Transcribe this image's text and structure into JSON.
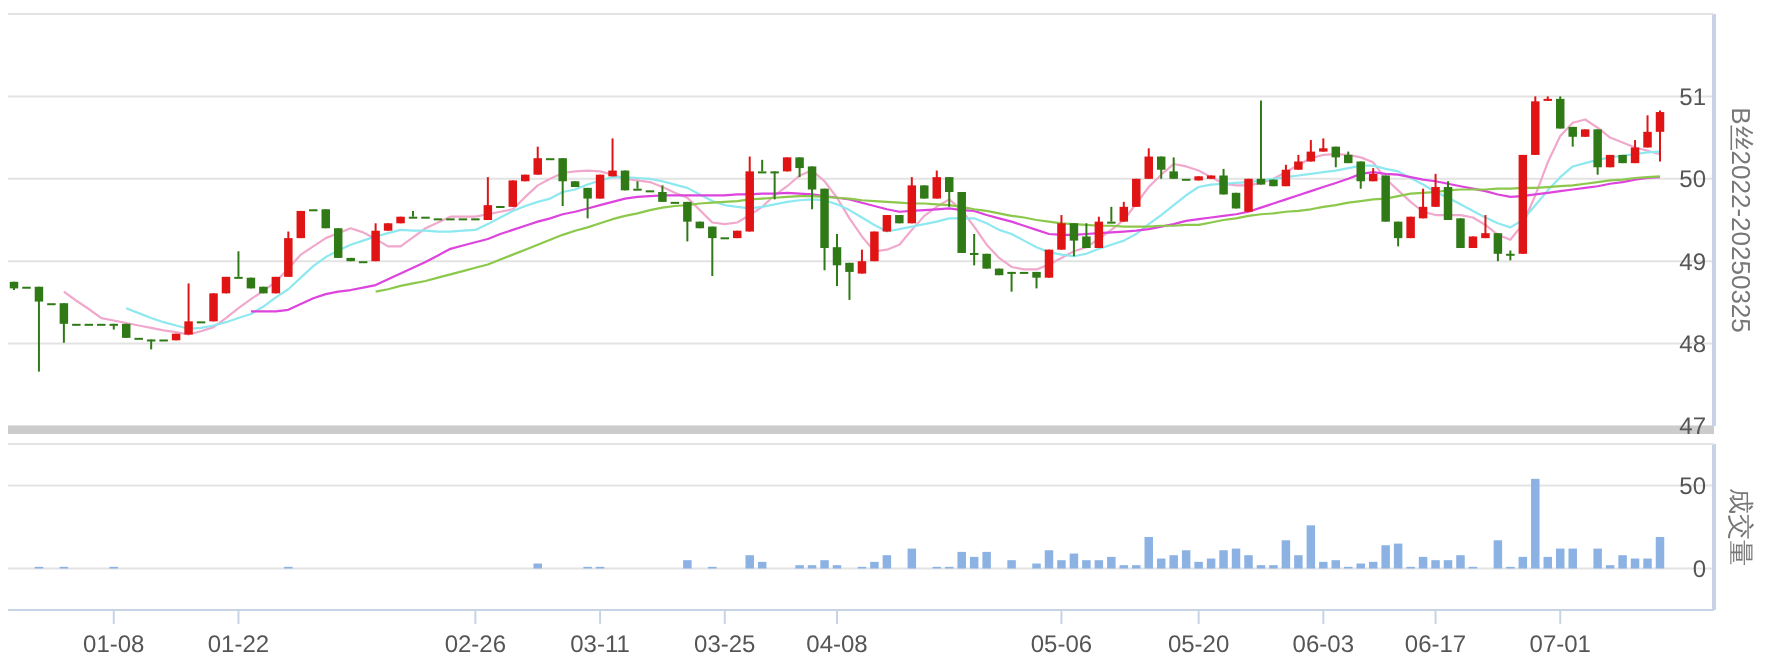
{
  "chart_data": [
    {
      "type": "candlestick",
      "ylabel": "B丝2022-20250325",
      "grid": "y",
      "tick_labels": "y",
      "ylim": [
        47,
        52
      ],
      "yticks": [
        47,
        48,
        49,
        50,
        51
      ],
      "categories": [
        null,
        null,
        null,
        null,
        null,
        null,
        null,
        null,
        null,
        null,
        null,
        null,
        null,
        null,
        null,
        null,
        null,
        null,
        null,
        null,
        null,
        null,
        null,
        null,
        null,
        null,
        null,
        null,
        null,
        null,
        null,
        null,
        null,
        null,
        null,
        null,
        null,
        null,
        null,
        null,
        null,
        null,
        null,
        null,
        null,
        null,
        null,
        null,
        null,
        null,
        null,
        null,
        null,
        null,
        null,
        null,
        null,
        null,
        null,
        null,
        null,
        null,
        null,
        null,
        null,
        null,
        null,
        null,
        null,
        null,
        null,
        null,
        null,
        null,
        null,
        null,
        null,
        null,
        null,
        null,
        null,
        null,
        null,
        null,
        null,
        null,
        null,
        null,
        null,
        null,
        null,
        null,
        null,
        null,
        null,
        null,
        null,
        null,
        null,
        null,
        null,
        null,
        null,
        null,
        null,
        null,
        null,
        null,
        null,
        null,
        null,
        null,
        null,
        null,
        null,
        null,
        null,
        null,
        null,
        null,
        null,
        null,
        null,
        null,
        null,
        null,
        null,
        null,
        null,
        null,
        null,
        null,
        null
      ],
      "ohlc": [
        [
          48.75,
          48.75,
          48.65,
          48.67
        ],
        [
          48.69,
          48.69,
          48.69,
          48.69
        ],
        [
          48.69,
          48.69,
          47.66,
          48.51
        ],
        [
          48.49,
          48.49,
          48.49,
          48.49
        ],
        [
          48.49,
          48.49,
          48.01,
          48.24
        ],
        [
          48.24,
          48.24,
          48.24,
          48.24
        ],
        [
          48.24,
          48.24,
          48.24,
          48.24
        ],
        [
          48.24,
          48.24,
          48.24,
          48.24
        ],
        [
          48.24,
          48.24,
          48.17,
          48.24
        ],
        [
          48.24,
          48.24,
          48.07,
          48.07
        ],
        [
          48.07,
          48.07,
          48.07,
          48.07
        ],
        [
          48.05,
          48.05,
          47.93,
          48.05
        ],
        [
          48.05,
          48.05,
          48.05,
          48.05
        ],
        [
          48.04,
          48.12,
          48.04,
          48.12
        ],
        [
          48.11,
          48.73,
          48.11,
          48.27
        ],
        [
          48.27,
          48.27,
          48.27,
          48.27
        ],
        [
          48.27,
          48.61,
          48.27,
          48.61
        ],
        [
          48.61,
          48.81,
          48.61,
          48.81
        ],
        [
          48.81,
          49.12,
          48.81,
          48.81
        ],
        [
          48.8,
          48.8,
          48.67,
          48.67
        ],
        [
          48.69,
          48.69,
          48.61,
          48.61
        ],
        [
          48.61,
          48.81,
          48.61,
          48.81
        ],
        [
          48.81,
          49.36,
          48.81,
          49.28
        ],
        [
          49.28,
          49.61,
          49.28,
          49.61
        ],
        [
          49.63,
          49.63,
          49.63,
          49.63
        ],
        [
          49.63,
          49.63,
          49.4,
          49.4
        ],
        [
          49.4,
          49.4,
          49.04,
          49.04
        ],
        [
          49.04,
          49.04,
          49.0,
          49.0
        ],
        [
          49.0,
          49.0,
          49.0,
          49.0
        ],
        [
          49.0,
          49.46,
          49.0,
          49.37
        ],
        [
          49.37,
          49.46,
          49.37,
          49.46
        ],
        [
          49.46,
          49.54,
          49.46,
          49.54
        ],
        [
          49.54,
          49.61,
          49.54,
          49.54
        ],
        [
          49.54,
          49.54,
          49.54,
          49.54
        ],
        [
          49.52,
          49.52,
          49.52,
          49.52
        ],
        [
          49.52,
          49.52,
          49.52,
          49.52
        ],
        [
          49.52,
          49.52,
          49.52,
          49.52
        ],
        [
          49.52,
          49.52,
          49.52,
          49.52
        ],
        [
          49.5,
          50.02,
          49.5,
          49.68
        ],
        [
          49.67,
          49.67,
          49.67,
          49.67
        ],
        [
          49.66,
          49.98,
          49.66,
          49.98
        ],
        [
          49.97,
          50.05,
          49.97,
          50.05
        ],
        [
          50.05,
          50.39,
          50.05,
          50.25
        ],
        [
          50.25,
          50.25,
          50.25,
          50.25
        ],
        [
          50.25,
          50.25,
          49.67,
          49.97
        ],
        [
          49.97,
          49.97,
          49.9,
          49.9
        ],
        [
          49.89,
          49.89,
          49.52,
          49.76
        ],
        [
          49.76,
          50.05,
          49.76,
          50.05
        ],
        [
          50.03,
          50.49,
          50.03,
          50.1
        ],
        [
          50.1,
          50.1,
          49.86,
          49.86
        ],
        [
          49.88,
          49.97,
          49.88,
          49.88
        ],
        [
          49.86,
          49.86,
          49.86,
          49.86
        ],
        [
          49.84,
          49.92,
          49.72,
          49.72
        ],
        [
          49.72,
          49.72,
          49.72,
          49.72
        ],
        [
          49.72,
          49.72,
          49.24,
          49.48
        ],
        [
          49.48,
          49.48,
          49.4,
          49.4
        ],
        [
          49.42,
          49.42,
          48.82,
          49.28
        ],
        [
          49.29,
          49.29,
          49.29,
          49.29
        ],
        [
          49.28,
          49.37,
          49.28,
          49.37
        ],
        [
          49.36,
          50.27,
          49.36,
          50.09
        ],
        [
          50.09,
          50.23,
          50.09,
          50.09
        ],
        [
          50.09,
          50.09,
          49.75,
          50.09
        ],
        [
          50.09,
          50.26,
          50.09,
          50.26
        ],
        [
          50.26,
          50.26,
          50.02,
          50.13
        ],
        [
          50.15,
          50.15,
          49.63,
          49.87
        ],
        [
          49.88,
          49.88,
          48.89,
          49.16
        ],
        [
          49.17,
          49.33,
          48.7,
          48.95
        ],
        [
          48.98,
          48.98,
          48.53,
          48.87
        ],
        [
          48.85,
          49.14,
          48.85,
          49.0
        ],
        [
          49.0,
          49.36,
          49.0,
          49.36
        ],
        [
          49.36,
          49.56,
          49.36,
          49.56
        ],
        [
          49.56,
          49.56,
          49.46,
          49.46
        ],
        [
          49.46,
          50.02,
          49.46,
          49.92
        ],
        [
          49.92,
          49.92,
          49.76,
          49.76
        ],
        [
          49.76,
          50.1,
          49.76,
          50.02
        ],
        [
          50.02,
          50.02,
          49.66,
          49.84
        ],
        [
          49.84,
          49.84,
          49.1,
          49.1
        ],
        [
          49.1,
          49.33,
          48.95,
          49.1
        ],
        [
          49.09,
          49.09,
          48.91,
          48.91
        ],
        [
          48.91,
          48.91,
          48.83,
          48.83
        ],
        [
          48.87,
          48.87,
          48.63,
          48.87
        ],
        [
          48.87,
          48.87,
          48.87,
          48.87
        ],
        [
          48.87,
          48.87,
          48.67,
          48.8
        ],
        [
          48.8,
          49.14,
          48.8,
          49.14
        ],
        [
          49.14,
          49.56,
          49.14,
          49.46
        ],
        [
          49.46,
          49.46,
          49.06,
          49.25
        ],
        [
          49.3,
          49.46,
          49.16,
          49.16
        ],
        [
          49.16,
          49.54,
          49.16,
          49.48
        ],
        [
          49.48,
          49.66,
          49.48,
          49.48
        ],
        [
          49.48,
          49.72,
          49.48,
          49.66
        ],
        [
          49.66,
          50.0,
          49.66,
          50.0
        ],
        [
          50.0,
          50.37,
          50.0,
          50.27
        ],
        [
          50.27,
          50.27,
          50.0,
          50.11
        ],
        [
          50.09,
          50.26,
          50.0,
          50.0
        ],
        [
          50.0,
          50.0,
          50.0,
          50.0
        ],
        [
          49.98,
          50.03,
          49.98,
          50.03
        ],
        [
          50.0,
          50.04,
          50.0,
          50.04
        ],
        [
          50.04,
          50.12,
          49.81,
          49.81
        ],
        [
          49.83,
          49.83,
          49.64,
          49.64
        ],
        [
          49.6,
          50.0,
          49.6,
          50.0
        ],
        [
          50.0,
          50.95,
          49.93,
          49.93
        ],
        [
          49.99,
          49.99,
          49.91,
          49.91
        ],
        [
          49.91,
          50.17,
          49.91,
          50.11
        ],
        [
          50.11,
          50.29,
          50.11,
          50.21
        ],
        [
          50.21,
          50.47,
          50.21,
          50.33
        ],
        [
          50.33,
          50.49,
          50.33,
          50.37
        ],
        [
          50.39,
          50.39,
          50.14,
          50.26
        ],
        [
          50.29,
          50.33,
          50.19,
          50.19
        ],
        [
          50.21,
          50.21,
          49.88,
          49.97
        ],
        [
          49.97,
          50.13,
          49.97,
          50.06
        ],
        [
          50.04,
          50.04,
          49.48,
          49.48
        ],
        [
          49.48,
          49.48,
          49.18,
          49.28
        ],
        [
          49.28,
          49.54,
          49.28,
          49.54
        ],
        [
          49.52,
          49.88,
          49.52,
          49.66
        ],
        [
          49.66,
          50.06,
          49.66,
          49.9
        ],
        [
          49.9,
          49.97,
          49.5,
          49.5
        ],
        [
          49.52,
          49.52,
          49.16,
          49.16
        ],
        [
          49.16,
          49.3,
          49.16,
          49.3
        ],
        [
          49.28,
          49.56,
          49.28,
          49.34
        ],
        [
          49.34,
          49.34,
          49.0,
          49.09
        ],
        [
          49.09,
          49.13,
          49.01,
          49.09
        ],
        [
          49.09,
          50.29,
          49.09,
          50.29
        ],
        [
          50.29,
          51.0,
          50.29,
          50.94
        ],
        [
          50.95,
          51.0,
          50.95,
          50.97
        ],
        [
          50.97,
          51.0,
          50.61,
          50.61
        ],
        [
          50.63,
          50.63,
          50.39,
          50.51
        ],
        [
          50.51,
          50.6,
          50.51,
          50.6
        ],
        [
          50.6,
          50.6,
          50.05,
          50.14
        ],
        [
          50.14,
          50.29,
          50.14,
          50.29
        ],
        [
          50.29,
          50.29,
          50.19,
          50.19
        ],
        [
          50.19,
          50.47,
          50.19,
          50.38
        ],
        [
          50.38,
          50.77,
          50.38,
          50.57
        ],
        [
          50.57,
          50.83,
          50.21,
          50.81
        ]
      ],
      "series": [
        {
          "type": "line",
          "color": "#f0a8cc",
          "values": [
            null,
            null,
            null,
            null,
            48.63,
            48.52,
            48.42,
            48.31,
            48.28,
            48.25,
            48.22,
            48.19,
            48.16,
            48.14,
            48.11,
            48.15,
            48.2,
            48.31,
            48.43,
            48.54,
            48.64,
            48.75,
            48.91,
            49.08,
            49.18,
            49.28,
            49.34,
            49.4,
            49.35,
            49.27,
            49.18,
            49.18,
            49.29,
            49.4,
            49.47,
            49.54,
            49.54,
            49.54,
            49.57,
            49.6,
            49.63,
            49.78,
            49.92,
            50.0,
            50.07,
            50.09,
            50.1,
            50.09,
            50.05,
            50.0,
            49.98,
            49.96,
            49.9,
            49.83,
            49.77,
            49.62,
            49.47,
            49.45,
            49.47,
            49.56,
            49.66,
            49.8,
            49.91,
            50.04,
            50.1,
            49.97,
            49.77,
            49.52,
            49.3,
            49.12,
            49.14,
            49.2,
            49.38,
            49.55,
            49.66,
            49.75,
            49.62,
            49.42,
            49.2,
            49.04,
            48.93,
            48.9,
            48.9,
            48.96,
            49.04,
            49.12,
            49.17,
            49.27,
            49.38,
            49.5,
            49.7,
            49.9,
            50.05,
            50.18,
            50.15,
            50.1,
            50.02,
            49.94,
            49.92,
            49.92,
            49.95,
            50.0,
            50.08,
            50.17,
            50.25,
            50.29,
            50.3,
            50.29,
            50.26,
            50.2,
            50.0,
            49.86,
            49.72,
            49.6,
            49.56,
            49.56,
            49.56,
            49.53,
            49.44,
            49.32,
            49.26,
            49.45,
            49.8,
            50.2,
            50.52,
            50.68,
            50.72,
            50.62,
            50.5,
            50.44,
            50.38,
            50.34,
            50.3
          ]
        },
        {
          "type": "line",
          "color": "#8ee8f0",
          "values": [
            null,
            null,
            null,
            null,
            null,
            null,
            null,
            null,
            null,
            48.43,
            48.37,
            48.31,
            48.26,
            48.22,
            48.18,
            48.19,
            48.22,
            48.26,
            48.31,
            48.36,
            48.45,
            48.56,
            48.66,
            48.8,
            48.94,
            49.05,
            49.13,
            49.2,
            49.25,
            49.3,
            49.34,
            49.38,
            49.37,
            49.37,
            49.36,
            49.36,
            49.37,
            49.38,
            49.45,
            49.53,
            49.61,
            49.67,
            49.72,
            49.76,
            49.84,
            49.87,
            49.93,
            49.98,
            50.02,
            50.02,
            50.01,
            50.0,
            49.97,
            49.93,
            49.89,
            49.81,
            49.73,
            49.68,
            49.66,
            49.64,
            49.66,
            49.69,
            49.72,
            49.74,
            49.75,
            49.74,
            49.69,
            49.62,
            49.53,
            49.44,
            49.36,
            49.39,
            49.42,
            49.45,
            49.48,
            49.52,
            49.52,
            49.52,
            49.46,
            49.38,
            49.33,
            49.25,
            49.17,
            49.11,
            49.08,
            49.06,
            49.09,
            49.15,
            49.2,
            49.25,
            49.33,
            49.45,
            49.56,
            49.68,
            49.8,
            49.9,
            49.93,
            49.94,
            49.95,
            49.96,
            49.98,
            50.0,
            50.02,
            50.04,
            50.06,
            50.08,
            50.1,
            50.13,
            50.16,
            50.16,
            50.12,
            50.09,
            50.01,
            49.93,
            49.84,
            49.77,
            49.69,
            49.61,
            49.53,
            49.46,
            49.41,
            49.5,
            49.68,
            49.86,
            50.02,
            50.15,
            50.19,
            50.23,
            50.26,
            50.28,
            50.3,
            50.32,
            50.33
          ]
        },
        {
          "type": "line",
          "color": "#dd44dd",
          "values": [
            null,
            null,
            null,
            null,
            null,
            null,
            null,
            null,
            null,
            null,
            null,
            null,
            null,
            null,
            null,
            null,
            null,
            null,
            null,
            48.39,
            48.39,
            48.39,
            48.41,
            48.48,
            48.55,
            48.6,
            48.63,
            48.65,
            48.68,
            48.71,
            48.78,
            48.85,
            48.92,
            48.99,
            49.07,
            49.15,
            49.19,
            49.23,
            49.27,
            49.33,
            49.38,
            49.43,
            49.48,
            49.52,
            49.57,
            49.6,
            49.64,
            49.68,
            49.72,
            49.76,
            49.78,
            49.79,
            49.8,
            49.8,
            49.8,
            49.8,
            49.8,
            49.8,
            49.81,
            49.81,
            49.82,
            49.82,
            49.83,
            49.82,
            49.81,
            49.79,
            49.77,
            49.75,
            49.71,
            49.67,
            49.63,
            49.6,
            49.61,
            49.62,
            49.63,
            49.64,
            49.62,
            49.61,
            49.56,
            49.52,
            49.48,
            49.43,
            49.38,
            49.33,
            49.32,
            49.32,
            49.33,
            49.34,
            49.35,
            49.36,
            49.37,
            49.39,
            49.42,
            49.45,
            49.49,
            49.51,
            49.53,
            49.55,
            49.57,
            49.6,
            49.65,
            49.7,
            49.75,
            49.8,
            49.85,
            49.9,
            49.95,
            50.0,
            50.06,
            50.08,
            50.06,
            50.05,
            50.02,
            49.99,
            49.97,
            49.94,
            49.91,
            49.88,
            49.85,
            49.81,
            49.78,
            49.79,
            49.81,
            49.83,
            49.85,
            49.87,
            49.89,
            49.91,
            49.94,
            49.96,
            49.99,
            50.01,
            50.02
          ]
        },
        {
          "type": "line",
          "color": "#8cc84b",
          "values": [
            null,
            null,
            null,
            null,
            null,
            null,
            null,
            null,
            null,
            null,
            null,
            null,
            null,
            null,
            null,
            null,
            null,
            null,
            null,
            null,
            null,
            null,
            null,
            null,
            null,
            null,
            null,
            null,
            null,
            48.63,
            48.66,
            48.7,
            48.73,
            48.76,
            48.8,
            48.84,
            48.88,
            48.92,
            48.96,
            49.02,
            49.08,
            49.14,
            49.2,
            49.26,
            49.32,
            49.37,
            49.41,
            49.46,
            49.51,
            49.55,
            49.58,
            49.62,
            49.65,
            49.67,
            49.68,
            49.7,
            49.71,
            49.72,
            49.73,
            49.75,
            49.76,
            49.77,
            49.78,
            49.79,
            49.79,
            49.78,
            49.77,
            49.76,
            49.74,
            49.73,
            49.72,
            49.71,
            49.7,
            49.7,
            49.69,
            49.68,
            49.66,
            49.63,
            49.61,
            49.58,
            49.55,
            49.53,
            49.5,
            49.48,
            49.46,
            49.45,
            49.44,
            49.43,
            49.43,
            49.42,
            49.42,
            49.42,
            49.43,
            49.43,
            49.44,
            49.44,
            49.47,
            49.5,
            49.52,
            49.55,
            49.57,
            49.58,
            49.6,
            49.61,
            49.63,
            49.66,
            49.68,
            49.71,
            49.73,
            49.75,
            49.76,
            49.79,
            49.82,
            49.83,
            49.84,
            49.86,
            49.87,
            49.87,
            49.87,
            49.88,
            49.88,
            49.89,
            49.89,
            49.9,
            49.91,
            49.92,
            49.94,
            49.96,
            49.98,
            49.99,
            50.01,
            50.02,
            50.03
          ]
        }
      ]
    },
    {
      "type": "bar",
      "ylabel": "成交量",
      "grid": "y",
      "color": "#8cb2e3",
      "ylim": [
        -25,
        75
      ],
      "yticks": [
        0,
        50
      ],
      "categories": [
        null,
        null,
        null,
        null,
        null,
        null,
        null,
        null,
        "01-08",
        null,
        null,
        null,
        null,
        null,
        null,
        null,
        null,
        null,
        "01-22",
        null,
        null,
        null,
        null,
        null,
        null,
        null,
        null,
        null,
        null,
        null,
        null,
        null,
        null,
        null,
        null,
        null,
        null,
        "02-26",
        null,
        null,
        null,
        null,
        null,
        null,
        null,
        null,
        null,
        "03-11",
        null,
        null,
        null,
        null,
        null,
        null,
        null,
        null,
        null,
        "03-25",
        null,
        null,
        null,
        null,
        null,
        null,
        null,
        null,
        "04-08",
        null,
        null,
        null,
        null,
        null,
        null,
        null,
        null,
        null,
        null,
        null,
        null,
        null,
        null,
        null,
        null,
        null,
        "05-06",
        null,
        null,
        null,
        null,
        null,
        null,
        null,
        null,
        null,
        null,
        "05-20",
        null,
        null,
        null,
        null,
        null,
        null,
        null,
        null,
        null,
        "06-03",
        null,
        null,
        null,
        null,
        null,
        null,
        null,
        null,
        "06-17",
        null,
        null,
        null,
        null,
        null,
        null,
        null,
        null,
        null,
        "07-01",
        null,
        null,
        null,
        null,
        null,
        null,
        null,
        null
      ],
      "values": [
        null,
        null,
        1,
        null,
        1,
        null,
        null,
        null,
        1,
        null,
        null,
        null,
        null,
        null,
        null,
        null,
        null,
        null,
        null,
        null,
        null,
        null,
        1,
        null,
        null,
        null,
        null,
        null,
        null,
        null,
        null,
        null,
        null,
        null,
        null,
        null,
        null,
        null,
        null,
        null,
        null,
        null,
        3,
        null,
        null,
        null,
        1,
        1,
        null,
        null,
        null,
        null,
        null,
        null,
        5,
        null,
        1,
        null,
        null,
        8,
        4,
        null,
        null,
        2,
        2,
        5,
        2,
        null,
        1,
        4,
        8,
        null,
        12,
        null,
        1,
        1,
        10,
        7,
        10,
        null,
        5,
        null,
        3,
        11,
        5,
        9,
        5,
        5,
        7,
        2,
        2,
        19,
        6,
        8,
        11,
        4,
        6,
        11,
        12,
        8,
        2,
        2,
        17,
        8,
        26,
        4,
        5,
        1,
        3,
        4,
        14,
        15,
        1,
        7,
        5,
        5,
        8,
        1,
        null,
        17,
        1,
        7,
        54,
        7,
        12,
        12,
        null,
        12,
        2,
        8,
        6,
        6,
        19
      ]
    }
  ]
}
